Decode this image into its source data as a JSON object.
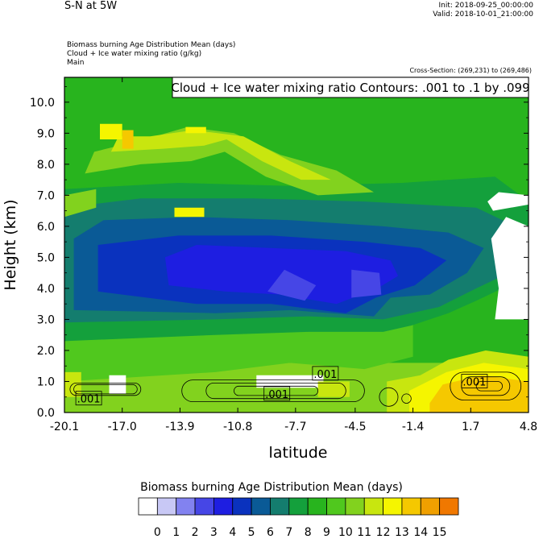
{
  "header": {
    "title": "S-N at 5W",
    "init": "Init: 2018-09-25_00:00:00",
    "valid": "Valid: 2018-10-01_21:00:00",
    "lines": [
      "Biomass burning Age Distribution Mean   (days)",
      "Cloud + Ice water mixing ratio   (g/kg)",
      "Main"
    ],
    "cross_section": "Cross-Section: (269,231) to (269,486)"
  },
  "colors": {
    "levels": [
      "#ffffff",
      "#c8c8f5",
      "#8282f0",
      "#4646e6",
      "#1e1ee1",
      "#0a32be",
      "#0a5a96",
      "#147d6e",
      "#14a03c",
      "#28b41e",
      "#50c81e",
      "#82d21e",
      "#c8e60f",
      "#f5f500",
      "#f5c800",
      "#f0a000",
      "#f07800",
      "#f05028",
      "#ff1414"
    ]
  },
  "chart_data": {
    "type": "heatmap",
    "title": "Cloud + Ice water mixing ratio Contours: .001 to .1 by .099",
    "xlabel": "latitude",
    "ylabel": "Height (km)",
    "x_ticks": [
      "-20.1",
      "-17.0",
      "-13.9",
      "-10.8",
      "-7.7",
      "-4.5",
      "-1.4",
      "1.7",
      "4.8"
    ],
    "y_ticks": [
      "0.0",
      "1.0",
      "2.0",
      "3.0",
      "4.0",
      "5.0",
      "6.0",
      "7.0",
      "8.0",
      "9.0",
      "10.0"
    ],
    "xlim": [
      -20.1,
      4.8
    ],
    "ylim": [
      0,
      10.8
    ],
    "colorbar": {
      "title": "Biomass burning Age Distribution Mean  (days)",
      "labels": [
        "0",
        "1",
        "2",
        "3",
        "4",
        "5",
        "6",
        "7",
        "8",
        "9",
        "10",
        "11",
        "12",
        "13",
        "14",
        "15"
      ]
    },
    "contour_labels": [
      ".001",
      ".001",
      ".001",
      ".001"
    ]
  }
}
